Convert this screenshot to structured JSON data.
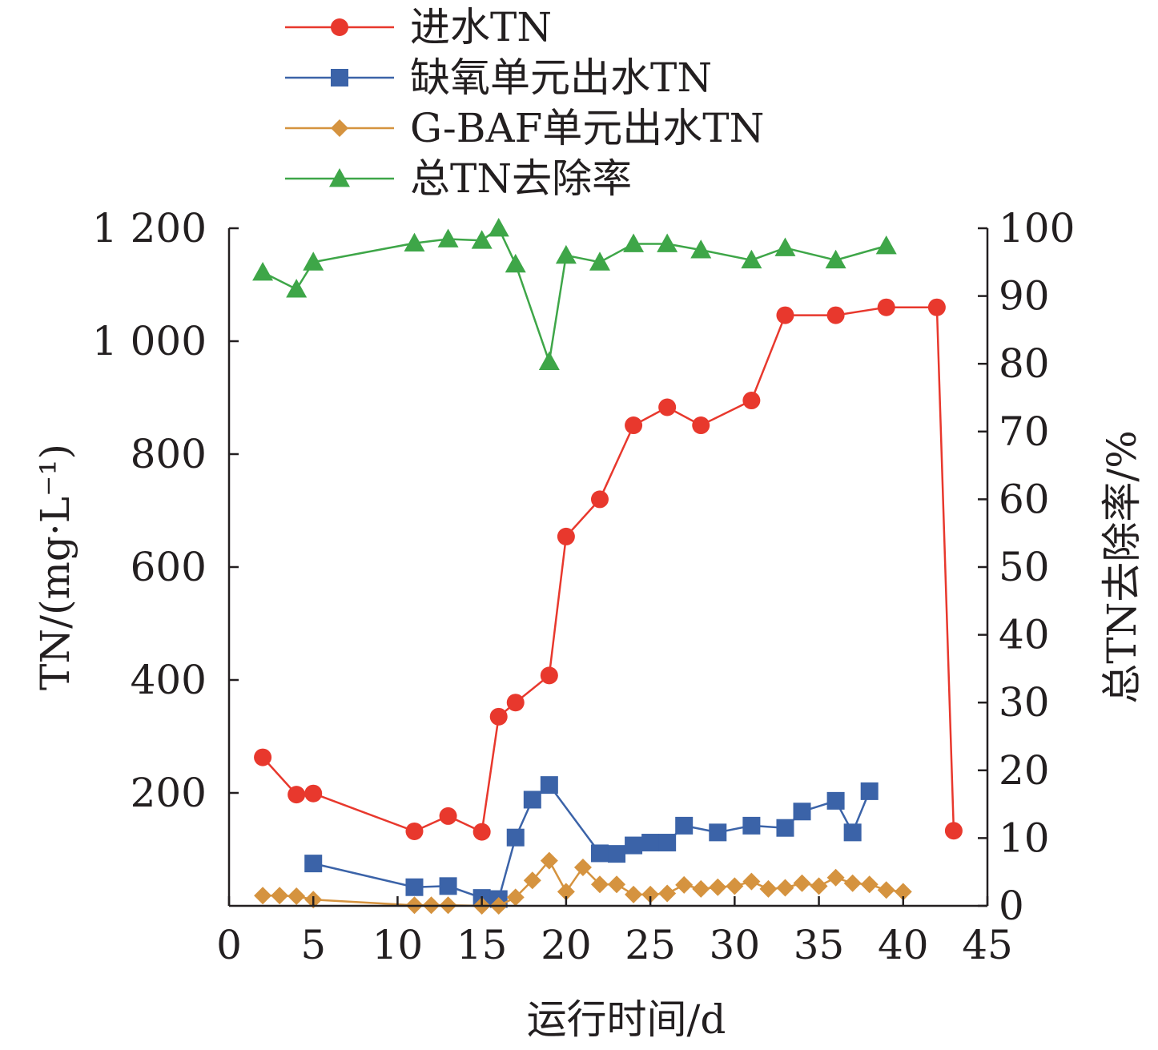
{
  "chart_data": {
    "type": "line",
    "xlabel": "运行时间/d",
    "ylabel_left": "TN/(mg·L⁻¹)",
    "ylabel_right": "总TN去除率/%",
    "xlim": [
      0,
      45
    ],
    "ylim_left": [
      0,
      1200
    ],
    "ylim_right": [
      0,
      100
    ],
    "x_ticks": [
      "0",
      "5",
      "10",
      "15",
      "20",
      "25",
      "30",
      "35",
      "40",
      "45"
    ],
    "y_ticks_left": [
      "200",
      "400",
      "600",
      "800",
      "1 000",
      "1 200"
    ],
    "y_ticks_right": [
      "0",
      "10",
      "20",
      "30",
      "40",
      "50",
      "60",
      "70",
      "80",
      "90",
      "100"
    ],
    "grid": false,
    "legend_position": "top-left, above plot",
    "series": [
      {
        "name": "进水TN",
        "axis": "left",
        "color": "#e8382d",
        "marker": "circle",
        "x": [
          2,
          4,
          5,
          11,
          13,
          15,
          16,
          17,
          19,
          20,
          22,
          24,
          26,
          28,
          31,
          33,
          36,
          39,
          42,
          43
        ],
        "y": [
          263,
          197,
          199,
          132,
          159,
          131,
          335,
          360,
          408,
          654,
          720,
          851,
          883,
          851,
          895,
          1046,
          1046,
          1060,
          1060,
          133
        ]
      },
      {
        "name": "缺氧单元出水TN",
        "axis": "left",
        "color": "#3b63a8",
        "marker": "square",
        "x": [
          5,
          11,
          13,
          15,
          16,
          17,
          18,
          19,
          22,
          23,
          24,
          25,
          26,
          27,
          29,
          31,
          33,
          34,
          36,
          37,
          38
        ],
        "y": [
          75,
          33,
          35,
          14,
          12,
          121,
          188,
          214,
          93,
          92,
          107,
          112,
          112,
          142,
          130,
          142,
          138,
          167,
          186,
          130,
          203
        ]
      },
      {
        "name": "G-BAF单元出水TN",
        "axis": "left",
        "color": "#d5933f",
        "marker": "diamond",
        "x": [
          2,
          3,
          4,
          5,
          11,
          12,
          13,
          15,
          16,
          17,
          18,
          19,
          20,
          21,
          22,
          23,
          24,
          25,
          26,
          27,
          28,
          29,
          30,
          31,
          32,
          33,
          34,
          35,
          36,
          37,
          38,
          39,
          40
        ],
        "y": [
          18,
          18,
          17,
          11,
          1,
          1,
          1,
          0,
          0,
          15,
          45,
          80,
          25,
          68,
          38,
          38,
          20,
          20,
          22,
          37,
          30,
          33,
          35,
          43,
          30,
          32,
          40,
          35,
          50,
          40,
          38,
          28,
          25
        ]
      },
      {
        "name": "总TN去除率",
        "axis": "right",
        "color": "#3ea648",
        "marker": "triangle",
        "x": [
          2,
          4,
          5,
          11,
          13,
          15,
          16,
          17,
          19,
          20,
          22,
          24,
          26,
          28,
          31,
          33,
          36,
          39
        ],
        "y": [
          93.5,
          91,
          95,
          97.8,
          98.4,
          98.2,
          100,
          94.7,
          80.3,
          96,
          95,
          97.7,
          97.7,
          96.8,
          95.3,
          97.1,
          95.3,
          97.4
        ]
      }
    ]
  }
}
